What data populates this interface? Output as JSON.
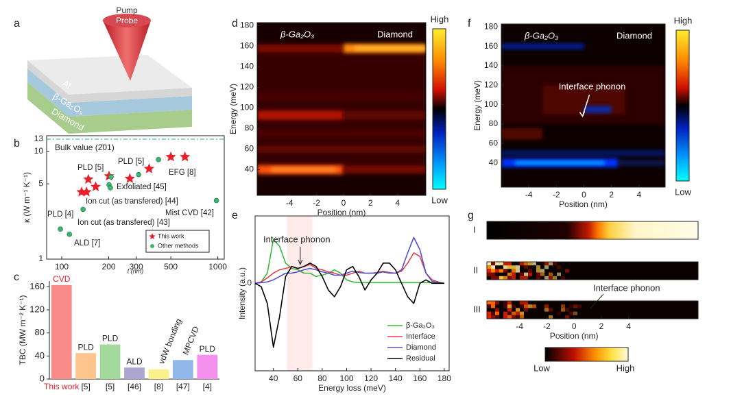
{
  "schematic": {
    "label": "a",
    "beam": [
      "Pump",
      "Probe"
    ],
    "layers": [
      "Al",
      "β-Ga₂O₃",
      "Diamond"
    ]
  },
  "chart_data": [
    {
      "type": "scatter",
      "label": "b",
      "xlabel": "t (nm)",
      "ylabel": "κ (W m⁻¹ K⁻¹)",
      "xlog": true,
      "ylog": true,
      "xlim": [
        80,
        1100
      ],
      "ylim": [
        1,
        14
      ],
      "xticks": [
        100,
        200,
        300,
        500,
        1000
      ],
      "yticks": [
        1,
        5,
        10,
        13
      ],
      "reference": {
        "value": 13,
        "label": "Bulk value (2̄01)",
        "color": "#2aa6a6"
      },
      "legend": "lower right",
      "series": [
        {
          "name": "This work",
          "marker": "star",
          "color": "#e8202a",
          "x": [
            134,
            144,
            148,
            165,
            201,
            273,
            363,
            500,
            616
          ],
          "values": [
            4.2,
            4.2,
            5.5,
            4.7,
            5.9,
            5.6,
            6.9,
            8.9,
            8.9
          ]
        },
        {
          "name": "Other methods",
          "marker": "circle",
          "color": "#3bb371",
          "x": [
            207,
            201,
            205,
            311,
            417,
            137,
            980,
            98,
            112
          ],
          "values": [
            5.8,
            4.9,
            4.6,
            6.1,
            8.4,
            2.9,
            3.5,
            1.9,
            1.7
          ],
          "point_labels": [
            "PLD [5]",
            "Exfoliated [45]",
            "Ion cut (as transfered) [44]",
            "PLD [5]",
            "EFG [8]",
            "Ion cut (as transfered) [43]",
            "Mist CVD [42]",
            "PLD [4]",
            "ALD [7]"
          ]
        }
      ]
    },
    {
      "type": "bar",
      "label": "c",
      "ylabel": "TBC (MW m⁻² K⁻¹)",
      "ylim": [
        0,
        170
      ],
      "yticks": [
        0,
        40,
        80,
        120,
        160
      ],
      "categories": [
        "This work",
        "[5]",
        "[5]",
        "[46]",
        "[8]",
        "[47]",
        "[4]"
      ],
      "values": [
        163,
        45,
        60,
        20,
        17,
        33,
        42
      ],
      "methods": [
        "CVD",
        "PLD",
        "PLD",
        "ALD",
        "vdW bonding",
        "MPCVD",
        "PLD"
      ],
      "colors": [
        "#f98a8a",
        "#fdc48e",
        "#a3d99c",
        "#aca6d2",
        "#fbf08c",
        "#92b8ea",
        "#f590ef"
      ]
    },
    {
      "type": "heatmap",
      "label": "d",
      "xlabel": "Position (nm)",
      "ylabel": "Energy (meV)",
      "xlim": [
        -6.4,
        6.1
      ],
      "ylim": [
        15,
        183
      ],
      "xticks": [
        -4,
        -2,
        0,
        2,
        4
      ],
      "yticks": [
        40,
        60,
        80,
        100,
        120,
        140,
        160,
        180
      ],
      "regions": [
        "β-Ga₂O₃",
        "Diamond"
      ],
      "colorbar": [
        "High",
        "Low"
      ]
    },
    {
      "type": "line",
      "label": "e",
      "xlabel": "Energy loss (meV)",
      "ylabel": "Intensity (a.u.)",
      "xlim": [
        25,
        184
      ],
      "ylim": [
        -1.3,
        1.0
      ],
      "xticks": [
        40,
        60,
        80,
        100,
        120,
        140,
        160,
        180
      ],
      "yticks": [
        0
      ],
      "highlight_range": [
        51,
        72
      ],
      "annotation": "Interface phonon",
      "legend": "lower right",
      "x": [
        25,
        30,
        35,
        40,
        45,
        50,
        55,
        60,
        65,
        70,
        75,
        80,
        85,
        90,
        95,
        100,
        105,
        110,
        115,
        120,
        125,
        130,
        135,
        140,
        145,
        150,
        155,
        160,
        165,
        170,
        175,
        180
      ],
      "series": [
        {
          "name": "β-Ga₂O₃",
          "color": "#3cb83c",
          "values": [
            0,
            0.02,
            0.15,
            0.65,
            0.55,
            0.3,
            0.22,
            0.2,
            0.15,
            0.15,
            0.1,
            0.12,
            0.15,
            0.2,
            0.15,
            0.05,
            0.02,
            0.01,
            0.01,
            0.01,
            0.01,
            0.01,
            0.01,
            0.01,
            0.01,
            0.01,
            0.01,
            0.01,
            0.01,
            0.01,
            0.01,
            0
          ]
        },
        {
          "name": "Interface",
          "color": "#e0404a",
          "values": [
            0,
            0.02,
            0.08,
            0.15,
            0.2,
            0.22,
            0.25,
            0.22,
            0.25,
            0.28,
            0.22,
            0.2,
            0.17,
            0.15,
            0.12,
            0.12,
            0.15,
            0.18,
            0.15,
            0.15,
            0.16,
            0.18,
            0.16,
            0.15,
            0.18,
            0.3,
            0.45,
            0.4,
            0.15,
            0.05,
            0.02,
            0
          ]
        },
        {
          "name": "Diamond",
          "color": "#5050d0",
          "values": [
            0,
            0.01,
            0.02,
            0.05,
            0.1,
            0.15,
            0.15,
            0.17,
            0.2,
            0.22,
            0.2,
            0.17,
            0.15,
            0.12,
            0.12,
            0.15,
            0.18,
            0.16,
            0.15,
            0.15,
            0.15,
            0.17,
            0.15,
            0.15,
            0.2,
            0.45,
            0.68,
            0.5,
            0.15,
            0.03,
            0.01,
            0
          ]
        },
        {
          "name": "Residual",
          "color": "#000000",
          "values": [
            0,
            -0.05,
            -0.3,
            -0.95,
            -0.5,
            0.1,
            0.25,
            0.22,
            0.25,
            0.3,
            0.25,
            0.1,
            -0.1,
            -0.2,
            -0.05,
            0.2,
            0.25,
            0.1,
            -0.1,
            0.05,
            0.15,
            0.3,
            0.3,
            0.2,
            0,
            -0.2,
            -0.3,
            0,
            0.05,
            0,
            0,
            0
          ]
        }
      ]
    },
    {
      "type": "heatmap",
      "label": "f",
      "xlabel": "Position (nm)",
      "ylabel": "Energy (meV)",
      "xlim": [
        -6.0,
        5.9
      ],
      "ylim": [
        15,
        183
      ],
      "xticks": [
        -4,
        -2,
        0,
        2,
        4
      ],
      "yticks": [
        40,
        60,
        80,
        100,
        120,
        140,
        160,
        180
      ],
      "regions": [
        "β-Ga₂O₃",
        "Diamond"
      ],
      "colorbar": [
        "High",
        "Low"
      ],
      "annotation": "Interface phonon"
    },
    {
      "type": "strips",
      "label": "g",
      "rows": [
        "I",
        "II",
        "III"
      ],
      "xlabel": "Position (nm)",
      "xlim": [
        -6.4,
        9.1
      ],
      "xticks": [
        -4,
        -2,
        0,
        2,
        4
      ],
      "colorbar": [
        "Low",
        "High"
      ],
      "annotation": "Interface phonon"
    }
  ]
}
